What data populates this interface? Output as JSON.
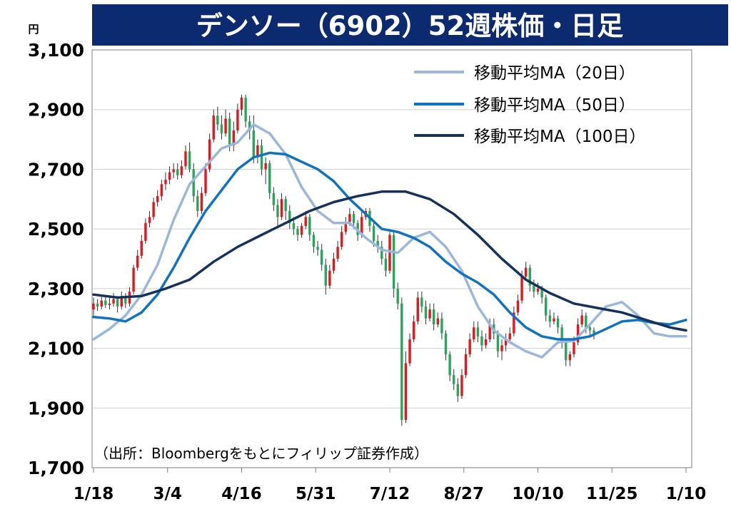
{
  "chart_data": {
    "type": "candlestick",
    "title": "デンソー（6902）52週株価・日足",
    "unit_label": "円",
    "source_note": "（出所：Bloombergをもとにフィリップ証券作成）",
    "ylim": [
      1700,
      3100
    ],
    "y_ticks": [
      "3,100",
      "2,900",
      "2,700",
      "2,500",
      "2,300",
      "2,100",
      "1,900",
      "1,700"
    ],
    "y_tick_values": [
      3100,
      2900,
      2700,
      2500,
      2300,
      2100,
      1900,
      1700
    ],
    "x_ticks": [
      "1/18",
      "3/4",
      "4/16",
      "5/31",
      "7/12",
      "8/27",
      "10/10",
      "11/25",
      "1/10"
    ],
    "grid": "horizontal",
    "legend_position": "top-right",
    "colors": {
      "title_bg": "#0c2a70",
      "up_candle": "#e8141c",
      "down_candle": "#27a65a",
      "ma20": "#9bb7dc",
      "ma50": "#1173c0",
      "ma100": "#16325c",
      "grid": "#cfcfcf"
    },
    "series": [
      {
        "name": "移動平均MA（20日）",
        "color_key": "ma20",
        "points": [
          [
            0,
            2130
          ],
          [
            4,
            2165
          ],
          [
            8,
            2210
          ],
          [
            12,
            2280
          ],
          [
            16,
            2380
          ],
          [
            20,
            2530
          ],
          [
            24,
            2650
          ],
          [
            28,
            2710
          ],
          [
            32,
            2770
          ],
          [
            36,
            2790
          ],
          [
            40,
            2850
          ],
          [
            44,
            2820
          ],
          [
            48,
            2750
          ],
          [
            52,
            2640
          ],
          [
            56,
            2560
          ],
          [
            60,
            2520
          ],
          [
            64,
            2520
          ],
          [
            68,
            2470
          ],
          [
            72,
            2430
          ],
          [
            76,
            2420
          ],
          [
            80,
            2470
          ],
          [
            84,
            2490
          ],
          [
            88,
            2440
          ],
          [
            92,
            2360
          ],
          [
            96,
            2240
          ],
          [
            100,
            2160
          ],
          [
            104,
            2120
          ],
          [
            108,
            2090
          ],
          [
            112,
            2070
          ],
          [
            116,
            2120
          ],
          [
            120,
            2125
          ],
          [
            124,
            2180
          ],
          [
            128,
            2240
          ],
          [
            132,
            2255
          ],
          [
            136,
            2210
          ],
          [
            140,
            2150
          ],
          [
            144,
            2140
          ],
          [
            148,
            2140
          ]
        ]
      },
      {
        "name": "移動平均MA（50日）",
        "color_key": "ma50",
        "points": [
          [
            0,
            2205
          ],
          [
            4,
            2200
          ],
          [
            8,
            2190
          ],
          [
            12,
            2220
          ],
          [
            16,
            2280
          ],
          [
            20,
            2370
          ],
          [
            24,
            2470
          ],
          [
            28,
            2560
          ],
          [
            32,
            2630
          ],
          [
            36,
            2700
          ],
          [
            40,
            2740
          ],
          [
            44,
            2755
          ],
          [
            48,
            2750
          ],
          [
            52,
            2725
          ],
          [
            56,
            2700
          ],
          [
            60,
            2660
          ],
          [
            64,
            2600
          ],
          [
            68,
            2550
          ],
          [
            72,
            2500
          ],
          [
            76,
            2490
          ],
          [
            80,
            2470
          ],
          [
            84,
            2440
          ],
          [
            88,
            2390
          ],
          [
            92,
            2350
          ],
          [
            96,
            2320
          ],
          [
            100,
            2280
          ],
          [
            104,
            2220
          ],
          [
            108,
            2170
          ],
          [
            112,
            2140
          ],
          [
            116,
            2130
          ],
          [
            120,
            2130
          ],
          [
            124,
            2140
          ],
          [
            128,
            2165
          ],
          [
            132,
            2190
          ],
          [
            136,
            2195
          ],
          [
            140,
            2185
          ],
          [
            144,
            2180
          ],
          [
            148,
            2195
          ]
        ]
      },
      {
        "name": "移動平均MA（100日）",
        "color_key": "ma100",
        "points": [
          [
            0,
            2280
          ],
          [
            6,
            2270
          ],
          [
            12,
            2275
          ],
          [
            18,
            2300
          ],
          [
            24,
            2330
          ],
          [
            30,
            2390
          ],
          [
            36,
            2440
          ],
          [
            42,
            2480
          ],
          [
            48,
            2520
          ],
          [
            54,
            2560
          ],
          [
            60,
            2590
          ],
          [
            66,
            2610
          ],
          [
            72,
            2625
          ],
          [
            78,
            2625
          ],
          [
            84,
            2600
          ],
          [
            90,
            2550
          ],
          [
            96,
            2480
          ],
          [
            102,
            2400
          ],
          [
            108,
            2330
          ],
          [
            114,
            2285
          ],
          [
            120,
            2250
          ],
          [
            126,
            2235
          ],
          [
            132,
            2220
          ],
          [
            138,
            2195
          ],
          [
            144,
            2170
          ],
          [
            148,
            2160
          ]
        ]
      }
    ],
    "candles": [
      [
        0,
        2230,
        2250,
        2270,
        2200
      ],
      [
        1,
        2250,
        2240,
        2265,
        2225
      ],
      [
        2,
        2240,
        2260,
        2280,
        2230
      ],
      [
        3,
        2260,
        2245,
        2275,
        2235
      ],
      [
        4,
        2245,
        2250,
        2270,
        2230
      ],
      [
        5,
        2250,
        2265,
        2285,
        2240
      ],
      [
        6,
        2265,
        2240,
        2275,
        2220
      ],
      [
        7,
        2240,
        2275,
        2290,
        2230
      ],
      [
        8,
        2275,
        2250,
        2285,
        2235
      ],
      [
        9,
        2250,
        2290,
        2305,
        2240
      ],
      [
        10,
        2290,
        2370,
        2380,
        2280
      ],
      [
        11,
        2370,
        2410,
        2430,
        2360
      ],
      [
        12,
        2410,
        2460,
        2480,
        2400
      ],
      [
        13,
        2460,
        2520,
        2535,
        2450
      ],
      [
        14,
        2520,
        2540,
        2560,
        2505
      ],
      [
        15,
        2540,
        2590,
        2605,
        2530
      ],
      [
        16,
        2590,
        2610,
        2630,
        2575
      ],
      [
        17,
        2610,
        2650,
        2665,
        2595
      ],
      [
        18,
        2650,
        2665,
        2690,
        2630
      ],
      [
        19,
        2665,
        2690,
        2710,
        2650
      ],
      [
        20,
        2690,
        2700,
        2720,
        2670
      ],
      [
        21,
        2700,
        2680,
        2720,
        2665
      ],
      [
        22,
        2680,
        2710,
        2730,
        2670
      ],
      [
        23,
        2710,
        2760,
        2780,
        2700
      ],
      [
        24,
        2760,
        2700,
        2790,
        2690
      ],
      [
        25,
        2700,
        2610,
        2720,
        2590
      ],
      [
        26,
        2610,
        2560,
        2630,
        2540
      ],
      [
        27,
        2560,
        2620,
        2640,
        2550
      ],
      [
        28,
        2620,
        2700,
        2720,
        2610
      ],
      [
        29,
        2700,
        2800,
        2820,
        2690
      ],
      [
        30,
        2800,
        2880,
        2900,
        2790
      ],
      [
        31,
        2880,
        2850,
        2910,
        2830
      ],
      [
        32,
        2850,
        2820,
        2880,
        2800
      ],
      [
        33,
        2820,
        2870,
        2900,
        2810
      ],
      [
        34,
        2870,
        2780,
        2890,
        2760
      ],
      [
        35,
        2780,
        2830,
        2860,
        2760
      ],
      [
        36,
        2830,
        2900,
        2920,
        2820
      ],
      [
        37,
        2900,
        2940,
        2950,
        2880
      ],
      [
        38,
        2940,
        2860,
        2950,
        2840
      ],
      [
        39,
        2860,
        2830,
        2880,
        2800
      ],
      [
        40,
        2830,
        2740,
        2880,
        2720
      ],
      [
        41,
        2740,
        2780,
        2800,
        2720
      ],
      [
        42,
        2780,
        2700,
        2800,
        2680
      ],
      [
        43,
        2700,
        2720,
        2740,
        2650
      ],
      [
        44,
        2720,
        2620,
        2730,
        2600
      ],
      [
        45,
        2620,
        2580,
        2640,
        2560
      ],
      [
        46,
        2580,
        2540,
        2600,
        2510
      ],
      [
        47,
        2540,
        2600,
        2620,
        2530
      ],
      [
        48,
        2600,
        2560,
        2610,
        2530
      ],
      [
        49,
        2560,
        2520,
        2580,
        2500
      ],
      [
        50,
        2520,
        2500,
        2540,
        2480
      ],
      [
        51,
        2500,
        2480,
        2510,
        2460
      ],
      [
        52,
        2480,
        2510,
        2520,
        2470
      ],
      [
        53,
        2510,
        2540,
        2560,
        2500
      ],
      [
        54,
        2540,
        2480,
        2550,
        2460
      ],
      [
        55,
        2480,
        2440,
        2490,
        2420
      ],
      [
        56,
        2440,
        2430,
        2460,
        2410
      ],
      [
        57,
        2430,
        2380,
        2450,
        2360
      ],
      [
        58,
        2380,
        2310,
        2400,
        2280
      ],
      [
        59,
        2310,
        2360,
        2380,
        2300
      ],
      [
        60,
        2360,
        2400,
        2420,
        2350
      ],
      [
        61,
        2400,
        2440,
        2460,
        2390
      ],
      [
        62,
        2440,
        2490,
        2510,
        2430
      ],
      [
        63,
        2490,
        2520,
        2540,
        2480
      ],
      [
        64,
        2520,
        2550,
        2570,
        2510
      ],
      [
        65,
        2550,
        2520,
        2560,
        2500
      ],
      [
        66,
        2520,
        2480,
        2530,
        2460
      ],
      [
        67,
        2480,
        2540,
        2560,
        2470
      ],
      [
        68,
        2540,
        2560,
        2570,
        2530
      ],
      [
        69,
        2560,
        2510,
        2570,
        2490
      ],
      [
        70,
        2510,
        2460,
        2520,
        2440
      ],
      [
        71,
        2460,
        2440,
        2480,
        2420
      ],
      [
        72,
        2440,
        2400,
        2460,
        2380
      ],
      [
        73,
        2400,
        2360,
        2420,
        2340
      ],
      [
        74,
        2360,
        2480,
        2490,
        2350
      ],
      [
        75,
        2480,
        2300,
        2490,
        2270
      ],
      [
        76,
        2300,
        2250,
        2320,
        2230
      ],
      [
        77,
        2250,
        1860,
        2270,
        1840
      ],
      [
        78,
        1860,
        2050,
        2090,
        1850
      ],
      [
        79,
        2050,
        2130,
        2150,
        2040
      ],
      [
        80,
        2130,
        2190,
        2210,
        2120
      ],
      [
        81,
        2190,
        2270,
        2290,
        2180
      ],
      [
        82,
        2270,
        2240,
        2290,
        2220
      ],
      [
        83,
        2240,
        2200,
        2260,
        2180
      ],
      [
        84,
        2200,
        2230,
        2250,
        2190
      ],
      [
        85,
        2230,
        2180,
        2250,
        2160
      ],
      [
        86,
        2180,
        2200,
        2220,
        2170
      ],
      [
        87,
        2200,
        2150,
        2220,
        2130
      ],
      [
        88,
        2150,
        2080,
        2160,
        2060
      ],
      [
        89,
        2080,
        2010,
        2090,
        1990
      ],
      [
        90,
        2010,
        1980,
        2030,
        1960
      ],
      [
        91,
        1980,
        1940,
        2000,
        1920
      ],
      [
        92,
        1940,
        2010,
        2030,
        1930
      ],
      [
        93,
        2010,
        2080,
        2100,
        2000
      ],
      [
        94,
        2080,
        2130,
        2150,
        2070
      ],
      [
        95,
        2130,
        2170,
        2190,
        2120
      ],
      [
        96,
        2170,
        2140,
        2190,
        2120
      ],
      [
        97,
        2140,
        2110,
        2160,
        2090
      ],
      [
        98,
        2110,
        2130,
        2150,
        2100
      ],
      [
        99,
        2130,
        2180,
        2200,
        2120
      ],
      [
        100,
        2180,
        2150,
        2200,
        2130
      ],
      [
        101,
        2150,
        2090,
        2160,
        2070
      ],
      [
        102,
        2090,
        2110,
        2130,
        2060
      ],
      [
        103,
        2110,
        2130,
        2150,
        2090
      ],
      [
        104,
        2130,
        2150,
        2170,
        2120
      ],
      [
        105,
        2150,
        2220,
        2240,
        2140
      ],
      [
        106,
        2220,
        2260,
        2280,
        2210
      ],
      [
        107,
        2260,
        2340,
        2360,
        2250
      ],
      [
        108,
        2340,
        2370,
        2390,
        2330
      ],
      [
        109,
        2370,
        2310,
        2380,
        2290
      ],
      [
        110,
        2310,
        2290,
        2330,
        2270
      ],
      [
        111,
        2290,
        2300,
        2320,
        2280
      ],
      [
        112,
        2300,
        2270,
        2310,
        2250
      ],
      [
        113,
        2270,
        2210,
        2280,
        2190
      ],
      [
        114,
        2210,
        2190,
        2230,
        2170
      ],
      [
        115,
        2190,
        2200,
        2220,
        2180
      ],
      [
        116,
        2200,
        2170,
        2210,
        2150
      ],
      [
        117,
        2170,
        2120,
        2180,
        2100
      ],
      [
        118,
        2120,
        2060,
        2130,
        2040
      ],
      [
        119,
        2060,
        2080,
        2090,
        2040
      ],
      [
        120,
        2080,
        2120,
        2140,
        2070
      ],
      [
        121,
        2120,
        2180,
        2200,
        2110
      ],
      [
        122,
        2180,
        2210,
        2230,
        2170
      ],
      [
        123,
        2210,
        2170,
        2220,
        2150
      ],
      [
        124,
        2170,
        2160,
        2180,
        2140
      ],
      [
        125,
        2160,
        2150,
        2170,
        2130
      ]
    ]
  }
}
